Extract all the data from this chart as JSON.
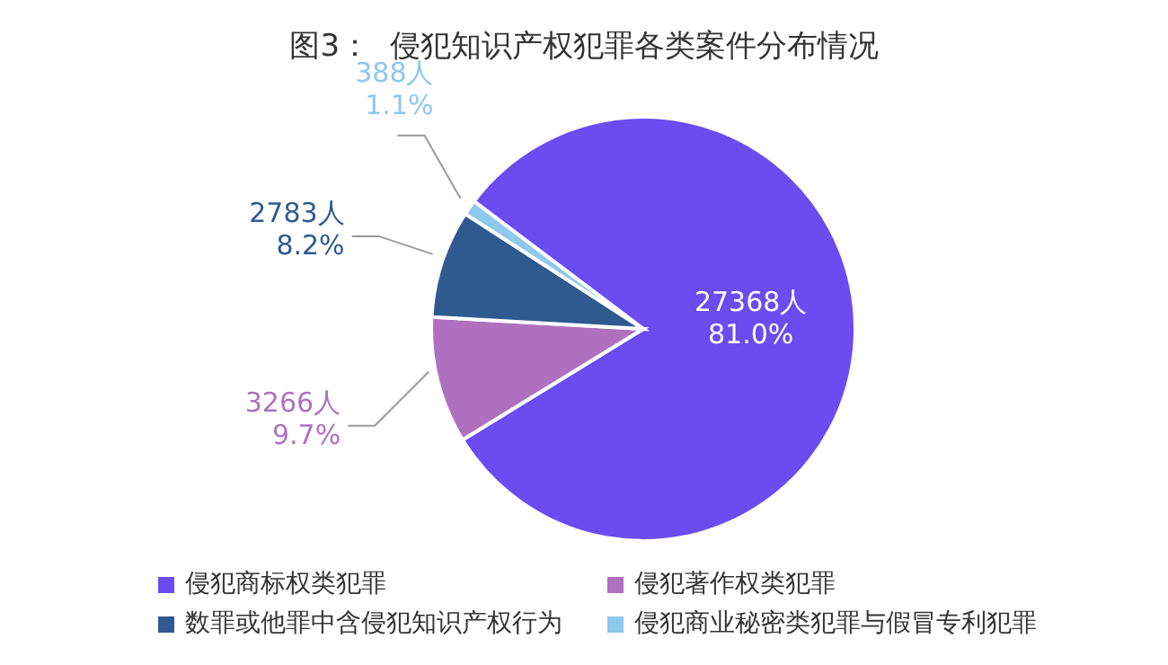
{
  "chart_data": {
    "type": "pie",
    "title": "图3：  侵犯知识产权犯罪各类案件分布情况",
    "categories": [
      "侵犯商标权类犯罪",
      "侵犯著作权类犯罪",
      "数罪或他罪中含侵犯知识产权行为",
      "侵犯商业秘密类犯罪与假冒专利犯罪"
    ],
    "values": [
      27368,
      3266,
      2783,
      388
    ],
    "colors": [
      "#6a4cf0",
      "#b070c0",
      "#2e5a90",
      "#8ec8ec"
    ],
    "value_labels": [
      "27368人\n81.0%",
      "3266人\n9.7%",
      "2783人\n8.2%",
      "388人\n1.1%"
    ],
    "legend": "bottom"
  }
}
